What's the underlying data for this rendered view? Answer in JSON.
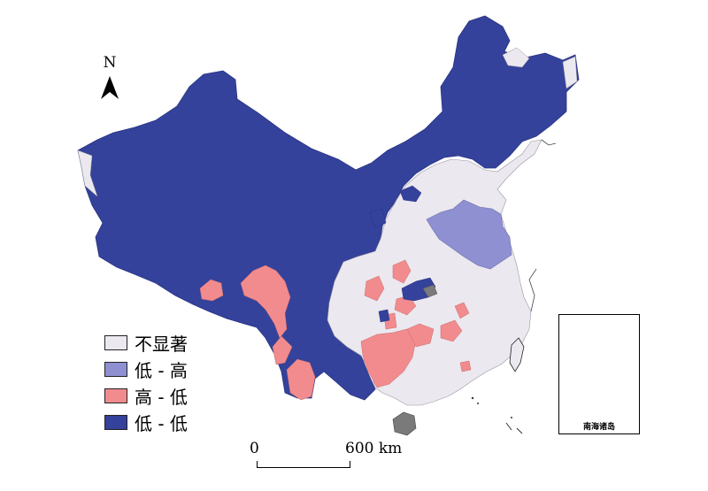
{
  "north_arrow": {
    "letter": "N"
  },
  "legend": {
    "items": [
      {
        "label": "不显著",
        "color": "#ebe8ef"
      },
      {
        "label": "低 - 高",
        "color": "#8f90d2"
      },
      {
        "label": "高 - 低",
        "color": "#f28b8d"
      },
      {
        "label": "低 - 低",
        "color": "#34429b"
      }
    ]
  },
  "scale_bar": {
    "start": "0",
    "end": "600 km"
  },
  "inset": {
    "label": "南海诸岛"
  },
  "colors": {
    "not_significant": "#ebe8ef",
    "low_high": "#8f90d2",
    "high_low": "#f28b8d",
    "low_low": "#34429b",
    "no_data": "#7a7a7a"
  }
}
